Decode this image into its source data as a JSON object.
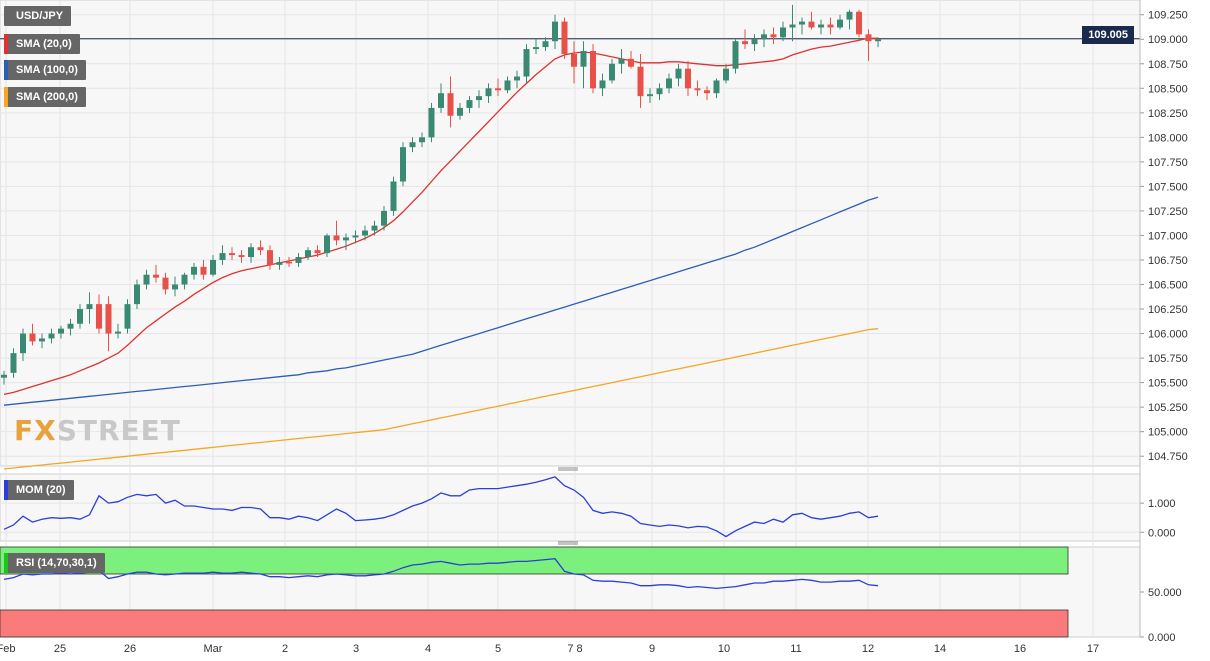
{
  "legend": {
    "symbol": "USD/JPY",
    "sma20": {
      "label": "SMA (20,0)",
      "color": "#e03131"
    },
    "sma100": {
      "label": "SMA (100,0)",
      "color": "#2b5fb4"
    },
    "sma200": {
      "label": "SMA (200,0)",
      "color": "#f5a623"
    },
    "mom": {
      "label": "MOM (20)",
      "color": "#2b3fd8"
    },
    "rsi": {
      "label": "RSI (14,70,30,1)",
      "color": "#2b3fd8"
    }
  },
  "current_price": "109.005",
  "watermark": {
    "prefix": "FX",
    "suffix": "STREET"
  },
  "colors": {
    "bull": "#3a8a73",
    "bear": "#e8504a",
    "overbought": "#7cf07c",
    "oversold": "#fb7b7b",
    "grid": "#e6e6e6"
  },
  "chart_data": {
    "type": "candlestick",
    "main": {
      "yticks": [
        "109.250",
        "109.000",
        "108.750",
        "108.500",
        "108.250",
        "108.000",
        "107.750",
        "107.500",
        "107.250",
        "107.000",
        "106.750",
        "106.500",
        "106.250",
        "106.000",
        "105.750",
        "105.500",
        "105.250",
        "105.000",
        "104.750"
      ],
      "ylim": [
        104.65,
        109.4
      ]
    },
    "xticks": [
      "Feb",
      "25",
      "26",
      "Mar",
      "2",
      "3",
      "4",
      "5",
      "7 8",
      "9",
      "10",
      "11",
      "12",
      "14",
      "16",
      "17"
    ],
    "candles": [
      [
        105.55,
        105.62,
        105.48,
        105.58
      ],
      [
        105.6,
        105.85,
        105.55,
        105.8
      ],
      [
        105.8,
        106.05,
        105.72,
        106.0
      ],
      [
        106.0,
        106.1,
        105.88,
        105.92
      ],
      [
        105.92,
        106.0,
        105.85,
        105.95
      ],
      [
        105.95,
        106.05,
        105.9,
        106.0
      ],
      [
        106.0,
        106.08,
        105.95,
        106.05
      ],
      [
        106.05,
        106.15,
        105.98,
        106.1
      ],
      [
        106.1,
        106.3,
        106.05,
        106.25
      ],
      [
        106.25,
        106.42,
        106.1,
        106.3
      ],
      [
        106.3,
        106.4,
        106.0,
        106.05
      ],
      [
        106.3,
        106.38,
        105.82,
        106.0
      ],
      [
        106.0,
        106.1,
        105.95,
        106.02
      ],
      [
        106.05,
        106.35,
        106.0,
        106.3
      ],
      [
        106.3,
        106.55,
        106.25,
        106.5
      ],
      [
        106.5,
        106.65,
        106.45,
        106.6
      ],
      [
        106.6,
        106.7,
        106.52,
        106.57
      ],
      [
        106.57,
        106.62,
        106.4,
        106.45
      ],
      [
        106.45,
        106.58,
        106.38,
        106.5
      ],
      [
        106.5,
        106.62,
        106.45,
        106.6
      ],
      [
        106.6,
        106.72,
        106.55,
        106.68
      ],
      [
        106.68,
        106.75,
        106.55,
        106.6
      ],
      [
        106.6,
        106.8,
        106.58,
        106.75
      ],
      [
        106.75,
        106.9,
        106.7,
        106.82
      ],
      [
        106.82,
        106.88,
        106.75,
        106.8
      ],
      [
        106.8,
        106.85,
        106.72,
        106.78
      ],
      [
        106.78,
        106.92,
        106.72,
        106.88
      ],
      [
        106.88,
        106.95,
        106.8,
        106.85
      ],
      [
        106.85,
        106.9,
        106.65,
        106.7
      ],
      [
        106.7,
        106.78,
        106.65,
        106.73
      ],
      [
        106.73,
        106.78,
        106.68,
        106.72
      ],
      [
        106.72,
        106.82,
        106.68,
        106.78
      ],
      [
        106.78,
        106.88,
        106.75,
        106.85
      ],
      [
        106.85,
        106.9,
        106.78,
        106.82
      ],
      [
        106.82,
        107.02,
        106.78,
        107.0
      ],
      [
        107.0,
        107.15,
        106.9,
        106.95
      ],
      [
        106.95,
        107.02,
        106.85,
        106.98
      ],
      [
        106.98,
        107.05,
        106.92,
        107.0
      ],
      [
        107.0,
        107.1,
        106.95,
        107.05
      ],
      [
        107.05,
        107.15,
        107.0,
        107.1
      ],
      [
        107.1,
        107.3,
        107.05,
        107.25
      ],
      [
        107.25,
        107.6,
        107.2,
        107.55
      ],
      [
        107.55,
        107.95,
        107.5,
        107.9
      ],
      [
        107.9,
        108.0,
        107.85,
        107.95
      ],
      [
        107.95,
        108.05,
        107.9,
        108.0
      ],
      [
        108.0,
        108.35,
        107.95,
        108.3
      ],
      [
        108.3,
        108.55,
        108.25,
        108.45
      ],
      [
        108.45,
        108.62,
        108.1,
        108.22
      ],
      [
        108.22,
        108.35,
        108.18,
        108.3
      ],
      [
        108.3,
        108.42,
        108.25,
        108.38
      ],
      [
        108.38,
        108.48,
        108.3,
        108.42
      ],
      [
        108.42,
        108.55,
        108.35,
        108.5
      ],
      [
        108.5,
        108.6,
        108.42,
        108.48
      ],
      [
        108.48,
        108.62,
        108.45,
        108.58
      ],
      [
        108.58,
        108.68,
        108.5,
        108.62
      ],
      [
        108.62,
        108.95,
        108.55,
        108.9
      ],
      [
        108.9,
        109.0,
        108.85,
        108.92
      ],
      [
        108.92,
        109.02,
        108.88,
        108.98
      ],
      [
        108.98,
        109.25,
        108.9,
        109.18
      ],
      [
        109.18,
        109.22,
        108.8,
        108.85
      ],
      [
        108.85,
        108.98,
        108.55,
        108.72
      ],
      [
        108.72,
        108.98,
        108.5,
        108.88
      ],
      [
        108.88,
        108.95,
        108.45,
        108.5
      ],
      [
        108.5,
        108.65,
        108.42,
        108.58
      ],
      [
        108.58,
        108.8,
        108.55,
        108.75
      ],
      [
        108.75,
        108.9,
        108.65,
        108.8
      ],
      [
        108.8,
        108.88,
        108.7,
        108.72
      ],
      [
        108.72,
        108.85,
        108.3,
        108.42
      ],
      [
        108.42,
        108.5,
        108.35,
        108.44
      ],
      [
        108.44,
        108.55,
        108.38,
        108.5
      ],
      [
        108.5,
        108.65,
        108.45,
        108.6
      ],
      [
        108.6,
        108.75,
        108.52,
        108.7
      ],
      [
        108.7,
        108.78,
        108.42,
        108.5
      ],
      [
        108.5,
        108.58,
        108.42,
        108.48
      ],
      [
        108.48,
        108.52,
        108.38,
        108.45
      ],
      [
        108.45,
        108.6,
        108.4,
        108.58
      ],
      [
        108.58,
        108.75,
        108.55,
        108.7
      ],
      [
        108.7,
        109.0,
        108.65,
        108.98
      ],
      [
        108.98,
        109.1,
        108.9,
        108.95
      ],
      [
        108.95,
        109.05,
        108.88,
        109.0
      ],
      [
        109.0,
        109.1,
        108.92,
        109.05
      ],
      [
        109.05,
        109.12,
        108.95,
        109.02
      ],
      [
        109.02,
        109.18,
        108.98,
        109.12
      ],
      [
        109.12,
        109.35,
        108.98,
        109.15
      ],
      [
        109.15,
        109.22,
        109.05,
        109.18
      ],
      [
        109.18,
        109.28,
        109.1,
        109.12
      ],
      [
        109.12,
        109.2,
        109.05,
        109.15
      ],
      [
        109.15,
        109.22,
        109.05,
        109.12
      ],
      [
        109.12,
        109.25,
        109.1,
        109.2
      ],
      [
        109.2,
        109.3,
        109.1,
        109.28
      ],
      [
        109.28,
        109.3,
        109.02,
        109.05
      ],
      [
        109.05,
        109.1,
        108.78,
        108.98
      ],
      [
        108.98,
        109.02,
        108.92,
        109.0
      ]
    ],
    "sma20": [
      105.38,
      105.4,
      105.43,
      105.46,
      105.49,
      105.52,
      105.55,
      105.58,
      105.62,
      105.66,
      105.7,
      105.75,
      105.8,
      105.88,
      105.97,
      106.06,
      106.13,
      106.2,
      106.27,
      106.33,
      106.4,
      106.46,
      106.52,
      106.57,
      106.61,
      106.64,
      106.66,
      106.68,
      106.7,
      106.72,
      106.74,
      106.76,
      106.78,
      106.8,
      106.83,
      106.86,
      106.89,
      106.93,
      106.97,
      107.02,
      107.08,
      107.15,
      107.24,
      107.34,
      107.44,
      107.55,
      107.66,
      107.76,
      107.86,
      107.96,
      108.06,
      108.16,
      108.26,
      108.36,
      108.46,
      108.55,
      108.64,
      108.72,
      108.8,
      108.84,
      108.86,
      108.87,
      108.86,
      108.84,
      108.82,
      108.8,
      108.78,
      108.76,
      108.76,
      108.76,
      108.77,
      108.77,
      108.76,
      108.75,
      108.74,
      108.73,
      108.73,
      108.74,
      108.75,
      108.76,
      108.77,
      108.78,
      108.8,
      108.84,
      108.87,
      108.9,
      108.92,
      108.93,
      108.95,
      108.97,
      108.99,
      109.01,
      109.01
    ],
    "sma100": [
      105.27,
      105.28,
      105.29,
      105.3,
      105.31,
      105.32,
      105.33,
      105.34,
      105.35,
      105.36,
      105.37,
      105.38,
      105.39,
      105.4,
      105.41,
      105.42,
      105.43,
      105.44,
      105.45,
      105.46,
      105.47,
      105.48,
      105.49,
      105.5,
      105.51,
      105.52,
      105.53,
      105.54,
      105.55,
      105.56,
      105.57,
      105.58,
      105.6,
      105.61,
      105.62,
      105.64,
      105.65,
      105.67,
      105.69,
      105.71,
      105.73,
      105.75,
      105.77,
      105.79,
      105.82,
      105.85,
      105.88,
      105.91,
      105.94,
      105.97,
      106.0,
      106.03,
      106.06,
      106.09,
      106.12,
      106.15,
      106.18,
      106.21,
      106.24,
      106.27,
      106.3,
      106.33,
      106.36,
      106.39,
      106.42,
      106.45,
      106.48,
      106.51,
      106.54,
      106.57,
      106.6,
      106.63,
      106.66,
      106.69,
      106.72,
      106.75,
      106.78,
      106.81,
      106.85,
      106.88,
      106.92,
      106.96,
      107.0,
      107.04,
      107.08,
      107.12,
      107.16,
      107.2,
      107.24,
      107.28,
      107.32,
      107.36,
      107.39
    ],
    "sma200": [
      104.62,
      104.63,
      104.64,
      104.65,
      104.66,
      104.67,
      104.68,
      104.69,
      104.7,
      104.71,
      104.72,
      104.73,
      104.74,
      104.75,
      104.76,
      104.77,
      104.78,
      104.79,
      104.8,
      104.81,
      104.82,
      104.83,
      104.84,
      104.85,
      104.86,
      104.87,
      104.88,
      104.89,
      104.9,
      104.91,
      104.92,
      104.93,
      104.94,
      104.95,
      104.96,
      104.97,
      104.98,
      104.99,
      105.0,
      105.01,
      105.02,
      105.04,
      105.06,
      105.08,
      105.1,
      105.12,
      105.14,
      105.16,
      105.18,
      105.2,
      105.22,
      105.24,
      105.26,
      105.28,
      105.3,
      105.32,
      105.34,
      105.36,
      105.38,
      105.4,
      105.42,
      105.44,
      105.46,
      105.48,
      105.5,
      105.52,
      105.54,
      105.56,
      105.58,
      105.6,
      105.62,
      105.64,
      105.66,
      105.68,
      105.7,
      105.72,
      105.74,
      105.76,
      105.78,
      105.8,
      105.82,
      105.84,
      105.86,
      105.88,
      105.9,
      105.92,
      105.94,
      105.96,
      105.98,
      106.0,
      106.02,
      106.04,
      106.05
    ],
    "mom": {
      "yticks": [
        "1.000",
        "0.000"
      ],
      "ylim": [
        -0.3,
        2.0
      ],
      "values": [
        0.1,
        0.25,
        0.55,
        0.35,
        0.45,
        0.5,
        0.48,
        0.5,
        0.45,
        0.6,
        1.25,
        1.0,
        1.05,
        1.2,
        1.3,
        1.25,
        1.3,
        1.0,
        1.1,
        0.9,
        0.9,
        0.85,
        0.8,
        0.8,
        0.75,
        0.85,
        0.85,
        0.8,
        0.5,
        0.5,
        0.45,
        0.55,
        0.5,
        0.4,
        0.6,
        0.8,
        0.65,
        0.4,
        0.42,
        0.45,
        0.5,
        0.6,
        0.75,
        0.9,
        1.0,
        1.15,
        1.35,
        1.25,
        1.25,
        1.45,
        1.5,
        1.5,
        1.5,
        1.55,
        1.6,
        1.65,
        1.72,
        1.8,
        1.9,
        1.6,
        1.45,
        1.2,
        0.75,
        0.65,
        0.7,
        0.65,
        0.55,
        0.3,
        0.25,
        0.2,
        0.25,
        0.22,
        0.15,
        0.2,
        0.18,
        0.05,
        -0.15,
        0.05,
        0.2,
        0.35,
        0.3,
        0.45,
        0.35,
        0.6,
        0.65,
        0.5,
        0.45,
        0.5,
        0.55,
        0.65,
        0.7,
        0.5,
        0.55
      ]
    },
    "rsi": {
      "yticks": [
        "50.000",
        "0.000"
      ],
      "ylim": [
        0,
        100
      ],
      "upper": 70,
      "lower": 30,
      "values": [
        64,
        66,
        70,
        69,
        70,
        70,
        71,
        70,
        71,
        72,
        74,
        65,
        67,
        70,
        72,
        72,
        70,
        69,
        70,
        71,
        71,
        71,
        72,
        71,
        71,
        72,
        71,
        70,
        67,
        67,
        66,
        67,
        68,
        67,
        69,
        70,
        69,
        68,
        68,
        69,
        70,
        73,
        77,
        80,
        81,
        83,
        84,
        82,
        80,
        81,
        81,
        82,
        82,
        83,
        84,
        84,
        85,
        86,
        87,
        73,
        70,
        69,
        63,
        62,
        62,
        61,
        60,
        57,
        57,
        58,
        58,
        57,
        55,
        56,
        55,
        54,
        55,
        56,
        58,
        60,
        60,
        62,
        62,
        63,
        64,
        63,
        61,
        61,
        62,
        62,
        63,
        58,
        57
      ]
    }
  }
}
